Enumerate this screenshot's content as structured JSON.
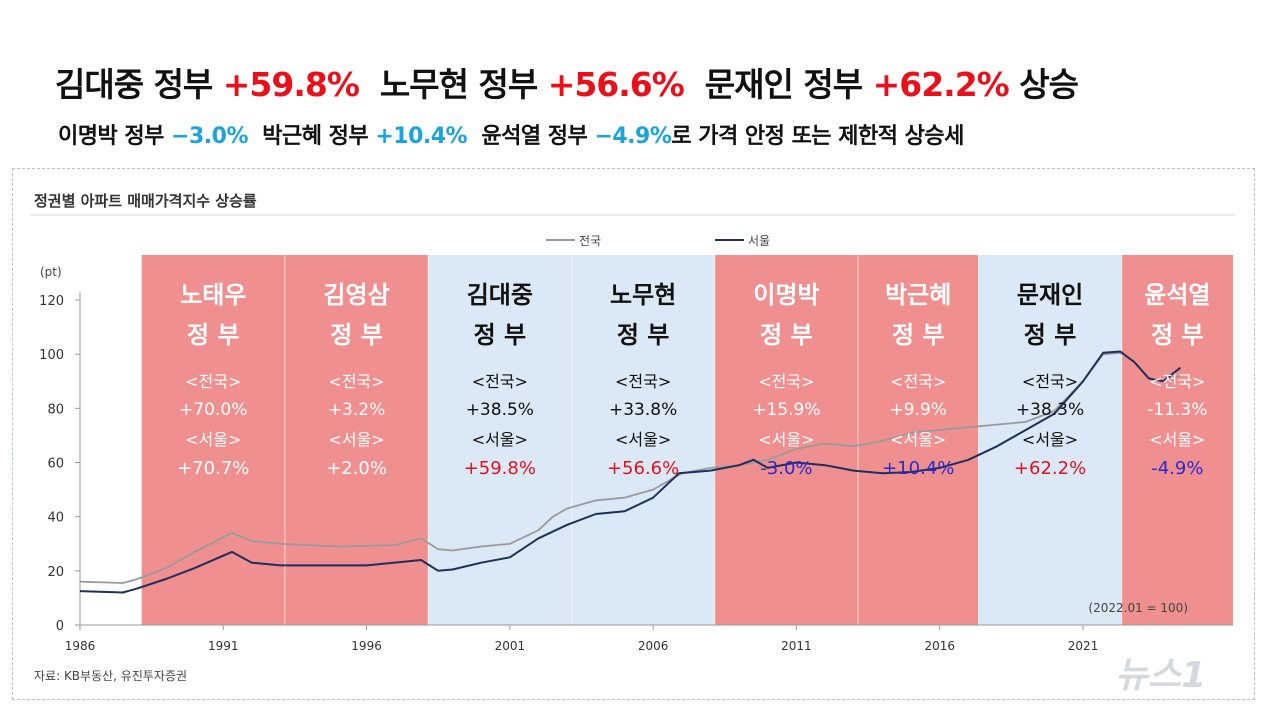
{
  "headline": {
    "line1": [
      {
        "text": "김대중 정부 ",
        "accent": false
      },
      {
        "text": "+59.8%",
        "accent": true
      },
      {
        "text": "  노무현 정부 ",
        "accent": false
      },
      {
        "text": "+56.6%",
        "accent": true
      },
      {
        "text": "  문재인 정부 ",
        "accent": false
      },
      {
        "text": "+62.2%",
        "accent": true
      },
      {
        "text": " 상승",
        "accent": false
      }
    ],
    "line2": [
      {
        "text": "이명박 정부 ",
        "accent": false
      },
      {
        "text": "−3.0%",
        "accent": true
      },
      {
        "text": "  박근혜 정부 ",
        "accent": false
      },
      {
        "text": "+10.4%",
        "accent": true
      },
      {
        "text": "  윤석열 정부 ",
        "accent": false
      },
      {
        "text": "−4.9%",
        "accent": true
      },
      {
        "text": "로 가격 안정 또는 제한적 상승세",
        "accent": false
      }
    ]
  },
  "colors": {
    "headline_red": "#e8101a",
    "headline_blue": "#1ba3dc",
    "band_red": "#f08f8f",
    "band_blue": "#dbe8f5",
    "nationwide": "#9a9a9a",
    "seoul": "#1f2f5c",
    "value_red": "#e8101a",
    "value_blue": "#2a2ad0"
  },
  "watermark": "뉴스1",
  "chart_data": {
    "type": "line",
    "title": "정권별 아파트 매매가격지수 상승률",
    "ylabel": "(pt)",
    "ylim": [
      0,
      120
    ],
    "yticks": [
      0,
      20,
      40,
      60,
      80,
      100,
      120
    ],
    "xlim": [
      1986,
      2027
    ],
    "xticks": [
      "1986",
      "1991",
      "1996",
      "2001",
      "2006",
      "2011",
      "2016",
      "2021"
    ],
    "note": "(2022.01 = 100)",
    "source": "자료: KB부동산, 유진투자증권",
    "legend": [
      "전국",
      "서울"
    ],
    "legend_position": "top",
    "grid": false,
    "governments": [
      {
        "name1": "노태우",
        "name2": "정 부",
        "start": 1988.15,
        "end": 1993.15,
        "color": "red",
        "nat_label": "<전국>",
        "nat": "+70.0%",
        "seo_label": "<서울>",
        "seo": "+70.7%",
        "seo_color": "white"
      },
      {
        "name1": "김영삼",
        "name2": "정 부",
        "start": 1993.15,
        "end": 1998.15,
        "color": "red",
        "nat_label": "<전국>",
        "nat": "+3.2%",
        "seo_label": "<서울>",
        "seo": "+2.0%",
        "seo_color": "white"
      },
      {
        "name1": "김대중",
        "name2": "정 부",
        "start": 1998.15,
        "end": 2003.15,
        "color": "blue",
        "nat_label": "<전국>",
        "nat": "+38.5%",
        "seo_label": "<서울>",
        "seo": "+59.8%",
        "seo_color": "red"
      },
      {
        "name1": "노무현",
        "name2": "정 부",
        "start": 2003.15,
        "end": 2008.15,
        "color": "blue",
        "nat_label": "<전국>",
        "nat": "+33.8%",
        "seo_label": "<서울>",
        "seo": "+56.6%",
        "seo_color": "red"
      },
      {
        "name1": "이명박",
        "name2": "정 부",
        "start": 2008.15,
        "end": 2013.15,
        "color": "red",
        "nat_label": "<전국>",
        "nat": "+15.9%",
        "seo_label": "<서울>",
        "seo": "-3.0%",
        "seo_color": "blue"
      },
      {
        "name1": "박근혜",
        "name2": "정 부",
        "start": 2013.15,
        "end": 2017.35,
        "color": "red",
        "nat_label": "<전국>",
        "nat": "+9.9%",
        "seo_label": "<서울>",
        "seo": "+10.4%",
        "seo_color": "blue"
      },
      {
        "name1": "문재인",
        "name2": "정 부",
        "start": 2017.35,
        "end": 2022.35,
        "color": "blue",
        "nat_label": "<전국>",
        "nat": "+38.3%",
        "seo_label": "<서울>",
        "seo": "+62.2%",
        "seo_color": "red"
      },
      {
        "name1": "윤석열",
        "name2": "정 부",
        "start": 2022.35,
        "end": 2026.5,
        "color": "red",
        "nat_label": "<전국>",
        "nat": "-11.3%",
        "seo_label": "<서울>",
        "seo": "-4.9%",
        "seo_color": "blue"
      }
    ],
    "series": [
      {
        "name": "전국",
        "x": [
          1986,
          1987.5,
          1988,
          1989,
          1990,
          1991.3,
          1992,
          1993,
          1995,
          1997,
          1997.9,
          1998.5,
          1999,
          2000,
          2001,
          2002,
          2002.5,
          2003,
          2004,
          2005,
          2006,
          2007,
          2008,
          2009,
          2010,
          2011,
          2012,
          2013,
          2014,
          2015,
          2016,
          2017,
          2018,
          2019,
          2020,
          2021,
          2021.7,
          2022.3,
          2022.8,
          2023.3,
          2023.8,
          2024.4
        ],
        "y": [
          16,
          15.5,
          17,
          21,
          27,
          34,
          31,
          30,
          29,
          29.5,
          32,
          28,
          27.5,
          29,
          30,
          35,
          40,
          43,
          46,
          47,
          50,
          56,
          58,
          59,
          61,
          65,
          67,
          66,
          68,
          71,
          72,
          73,
          74,
          75,
          79,
          90,
          100,
          100.5,
          97,
          91,
          90,
          92
        ]
      },
      {
        "name": "서울",
        "x": [
          1986,
          1987.5,
          1988,
          1989,
          1990,
          1991.3,
          1992,
          1993,
          1996,
          1997.9,
          1998.5,
          1999,
          2000,
          2001,
          2002,
          2003,
          2004,
          2005,
          2006,
          2006.9,
          2008,
          2009,
          2009.5,
          2010,
          2011,
          2012,
          2013,
          2014,
          2015,
          2016,
          2017,
          2018,
          2019,
          2020,
          2021,
          2021.7,
          2022.3,
          2022.8,
          2023.3,
          2023.8,
          2024.4
        ],
        "y": [
          12.5,
          12,
          13.5,
          17,
          21,
          27,
          23,
          22,
          22,
          24,
          20,
          20.5,
          23,
          25,
          32,
          37,
          41,
          42,
          47,
          56,
          57,
          59,
          61,
          58,
          60,
          59,
          57,
          56,
          56.5,
          58,
          61,
          66,
          72,
          78,
          90,
          100.5,
          101,
          97,
          91,
          90,
          95
        ]
      }
    ]
  }
}
